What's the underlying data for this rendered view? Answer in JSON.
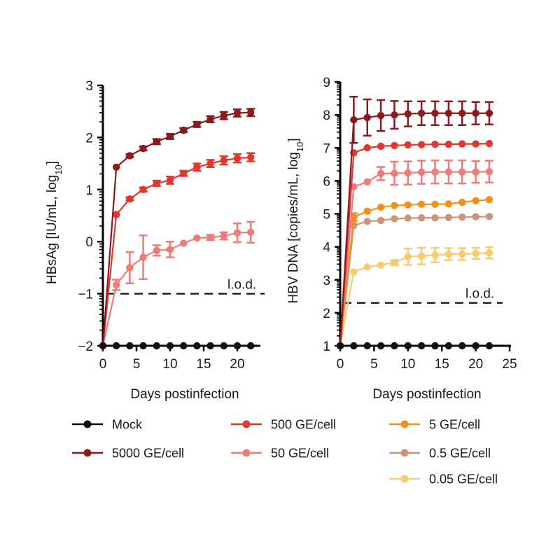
{
  "chart_data": [
    {
      "type": "line",
      "id": "left",
      "title": "",
      "xlabel": "Days postinfection",
      "ylabel_main": "HBsAg [IU/mL, log",
      "ylabel_sub": "10",
      "ylabel_end": "]",
      "xlim": [
        0,
        23.5
      ],
      "ylim": [
        -2,
        3
      ],
      "xticks": [
        0,
        5,
        10,
        15,
        20
      ],
      "xtick_labels": [
        "0",
        "5",
        "10",
        "15",
        "20"
      ],
      "yticks": [
        -2,
        -1,
        0,
        1,
        2,
        3
      ],
      "ytick_labels": [
        "−2",
        "−1",
        "0",
        "1",
        "2",
        "3"
      ],
      "grid": false,
      "lod": {
        "value": -1,
        "label": "l.o.d."
      },
      "x": [
        0,
        2,
        4,
        6,
        8,
        10,
        12,
        14,
        16,
        18,
        20,
        22
      ],
      "series": [
        {
          "name": "Mock",
          "values": [
            -2,
            -2,
            -2,
            -2,
            -2,
            -2,
            -2,
            -2,
            -2,
            -2,
            -2,
            -2
          ],
          "errors": [
            0,
            0,
            0,
            0,
            0,
            0,
            0,
            0,
            0,
            0,
            0,
            0
          ]
        },
        {
          "name": "5000 GE/cell",
          "values": [
            -2,
            1.43,
            1.65,
            1.79,
            1.92,
            2.02,
            2.14,
            2.25,
            2.35,
            2.42,
            2.47,
            2.48
          ],
          "errors": [
            0,
            0,
            0.03,
            0.04,
            0.05,
            0.05,
            0.04,
            0.05,
            0.06,
            0.07,
            0.07,
            0.07
          ]
        },
        {
          "name": "500 GE/cell",
          "values": [
            -2,
            0.52,
            0.82,
            1.0,
            1.12,
            1.18,
            1.31,
            1.43,
            1.5,
            1.56,
            1.6,
            1.62
          ],
          "errors": [
            0,
            0,
            0.03,
            0.04,
            0.05,
            0.07,
            0.05,
            0.07,
            0.07,
            0.08,
            0.08,
            0.08
          ]
        },
        {
          "name": "50 GE/cell",
          "values": [
            -2,
            -0.83,
            -0.5,
            -0.3,
            -0.17,
            -0.15,
            -0.03,
            0.07,
            0.08,
            0.11,
            0.17,
            0.18
          ],
          "errors": [
            0,
            0.1,
            0.3,
            0.42,
            0.1,
            0.15,
            0,
            0,
            0.05,
            0.07,
            0.18,
            0.2
          ]
        }
      ]
    },
    {
      "type": "line",
      "id": "right",
      "title": "",
      "xlabel": "Days postinfection",
      "ylabel_main": "HBV DNA [copies/mL, log",
      "ylabel_sub": "10",
      "ylabel_end": "]",
      "xlim": [
        0,
        25
      ],
      "ylim": [
        1,
        9
      ],
      "xticks": [
        0,
        5,
        10,
        15,
        20,
        25
      ],
      "xtick_labels": [
        "0",
        "5",
        "10",
        "15",
        "20",
        "25"
      ],
      "yticks": [
        1,
        2,
        3,
        4,
        5,
        6,
        7,
        8,
        9
      ],
      "ytick_labels": [
        "1",
        "2",
        "3",
        "4",
        "5",
        "6",
        "7",
        "8",
        "9"
      ],
      "grid": false,
      "lod": {
        "value": 2.3,
        "label": "l.o.d."
      },
      "x": [
        0,
        2,
        4,
        6,
        8,
        10,
        12,
        14,
        16,
        18,
        20,
        22
      ],
      "series": [
        {
          "name": "Mock",
          "values": [
            1,
            1,
            1,
            1,
            1,
            1,
            1,
            1,
            1,
            1,
            1,
            1
          ],
          "errors": [
            0,
            0,
            0,
            0,
            0,
            0,
            0,
            0,
            0,
            0,
            0,
            0
          ]
        },
        {
          "name": "5000 GE/cell",
          "values": [
            1,
            7.85,
            7.92,
            7.98,
            8.0,
            8.03,
            8.05,
            8.05,
            8.05,
            8.05,
            8.05,
            8.05
          ],
          "errors": [
            0,
            0.7,
            0.55,
            0.47,
            0.42,
            0.38,
            0.36,
            0.36,
            0.36,
            0.36,
            0.34,
            0.34
          ]
        },
        {
          "name": "500 GE/cell",
          "values": [
            1,
            6.85,
            7.0,
            7.05,
            7.07,
            7.09,
            7.1,
            7.11,
            7.11,
            7.12,
            7.12,
            7.13
          ],
          "errors": [
            0,
            0,
            0,
            0,
            0,
            0,
            0,
            0,
            0,
            0,
            0,
            0
          ]
        },
        {
          "name": "50 GE/cell",
          "values": [
            1,
            5.82,
            5.97,
            6.22,
            6.23,
            6.24,
            6.26,
            6.27,
            6.27,
            6.27,
            6.27,
            6.28
          ],
          "errors": [
            0,
            0,
            0,
            0.2,
            0.35,
            0.35,
            0.35,
            0.35,
            0.35,
            0.35,
            0.33,
            0.33
          ]
        },
        {
          "name": "5 GE/cell",
          "values": [
            1,
            4.9,
            5.08,
            5.2,
            5.25,
            5.27,
            5.29,
            5.29,
            5.3,
            5.35,
            5.4,
            5.43
          ],
          "errors": [
            0,
            0.12,
            0,
            0,
            0,
            0,
            0,
            0,
            0,
            0,
            0,
            0
          ]
        },
        {
          "name": "0.5 GE/cell",
          "values": [
            1,
            4.65,
            4.77,
            4.8,
            4.85,
            4.87,
            4.88,
            4.88,
            4.89,
            4.9,
            4.91,
            4.92
          ],
          "errors": [
            0,
            0,
            0,
            0,
            0,
            0,
            0,
            0,
            0,
            0,
            0,
            0
          ]
        },
        {
          "name": "0.05 GE/cell",
          "values": [
            1,
            3.24,
            3.39,
            3.45,
            3.52,
            3.7,
            3.72,
            3.75,
            3.78,
            3.78,
            3.8,
            3.82
          ],
          "errors": [
            0,
            0,
            0,
            0,
            0.08,
            0.25,
            0.25,
            0.22,
            0.18,
            0.18,
            0.17,
            0.17
          ]
        }
      ]
    }
  ],
  "legend": {
    "placement": "bottom",
    "items": [
      {
        "name": "Mock",
        "color": "#111111"
      },
      {
        "name": "5000 GE/cell",
        "color": "#8b1a1f"
      },
      {
        "name": "500 GE/cell",
        "color": "#e0362e"
      },
      {
        "name": "50 GE/cell",
        "color": "#ef7b78"
      },
      {
        "name": "5 GE/cell",
        "color": "#f0901f"
      },
      {
        "name": "0.5 GE/cell",
        "color": "#c9957a"
      },
      {
        "name": "0.05 GE/cell",
        "color": "#f7cc6e"
      }
    ]
  }
}
